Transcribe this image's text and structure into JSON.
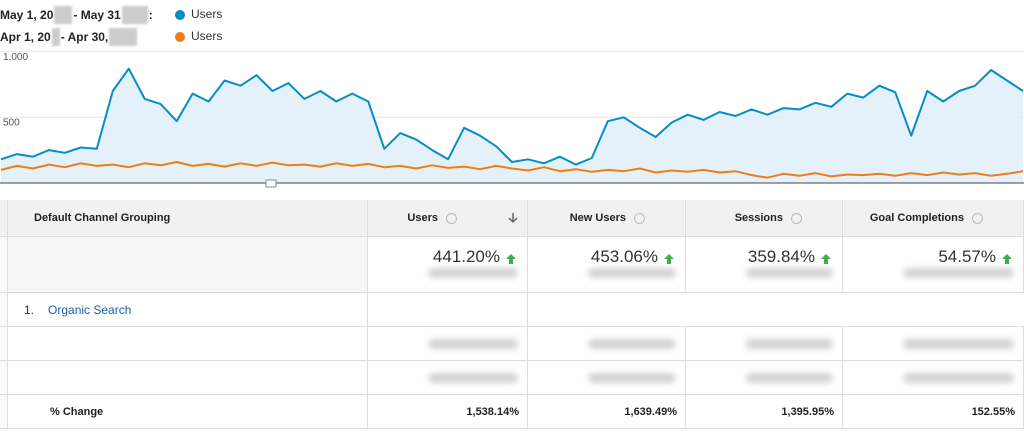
{
  "chart_data": {
    "type": "line",
    "categories": [
      null,
      null,
      null,
      null,
      null,
      null,
      null,
      null,
      null,
      null,
      null,
      null,
      null,
      null,
      null,
      null,
      null,
      null,
      null,
      null,
      null,
      null,
      null,
      null,
      null,
      null,
      null,
      null,
      null,
      null,
      null,
      null,
      null,
      null,
      null,
      null,
      null,
      null,
      null,
      null,
      null,
      null,
      null,
      null,
      null,
      null,
      null,
      null,
      null,
      null,
      null,
      null,
      null,
      null,
      null,
      null,
      null,
      null,
      null,
      null,
      null,
      null,
      null,
      null,
      null
    ],
    "ylim": [
      0,
      1050
    ],
    "yticks": [
      500,
      {
        "value": 1000,
        "label": "1,000"
      }
    ],
    "grid": true,
    "series": [
      {
        "name": "Users",
        "period_parts": [
          "May 1, 20",
          "- May 31",
          ":"
        ],
        "color": "#058dc7",
        "values": [
          180,
          220,
          200,
          250,
          230,
          270,
          260,
          700,
          870,
          640,
          600,
          470,
          680,
          620,
          780,
          740,
          820,
          700,
          760,
          640,
          700,
          620,
          680,
          620,
          260,
          380,
          330,
          250,
          180,
          420,
          360,
          280,
          160,
          180,
          150,
          200,
          140,
          190,
          470,
          500,
          420,
          350,
          460,
          520,
          480,
          540,
          510,
          560,
          520,
          570,
          560,
          610,
          580,
          680,
          650,
          740,
          690,
          360,
          700,
          620,
          700,
          740,
          860,
          780,
          700
        ]
      },
      {
        "name": "Users",
        "period_parts": [
          "Apr 1, 20",
          "- Apr 30,"
        ],
        "color": "#ed7e17",
        "values": [
          100,
          130,
          110,
          140,
          120,
          150,
          130,
          140,
          120,
          150,
          135,
          160,
          130,
          145,
          125,
          150,
          130,
          155,
          135,
          140,
          125,
          150,
          130,
          145,
          120,
          130,
          110,
          135,
          115,
          125,
          105,
          130,
          110,
          95,
          120,
          90,
          105,
          85,
          100,
          90,
          110,
          80,
          95,
          85,
          100,
          80,
          90,
          60,
          40,
          70,
          55,
          75,
          50,
          65,
          60,
          70,
          55,
          75,
          60,
          80,
          65,
          75,
          55,
          70,
          90
        ]
      }
    ]
  },
  "table": {
    "columns": [
      "Default Channel Grouping",
      "Users",
      "New Users",
      "Sessions",
      "Goal Completions"
    ],
    "summary": [
      "441.20%",
      "453.06%",
      "359.84%",
      "54.57%"
    ],
    "rows": [
      {
        "index": "1.",
        "label": "Organic Search"
      }
    ],
    "change_label": "% Change",
    "change": [
      "1,538.14%",
      "1,639.49%",
      "1,395.95%",
      "152.55%"
    ]
  }
}
